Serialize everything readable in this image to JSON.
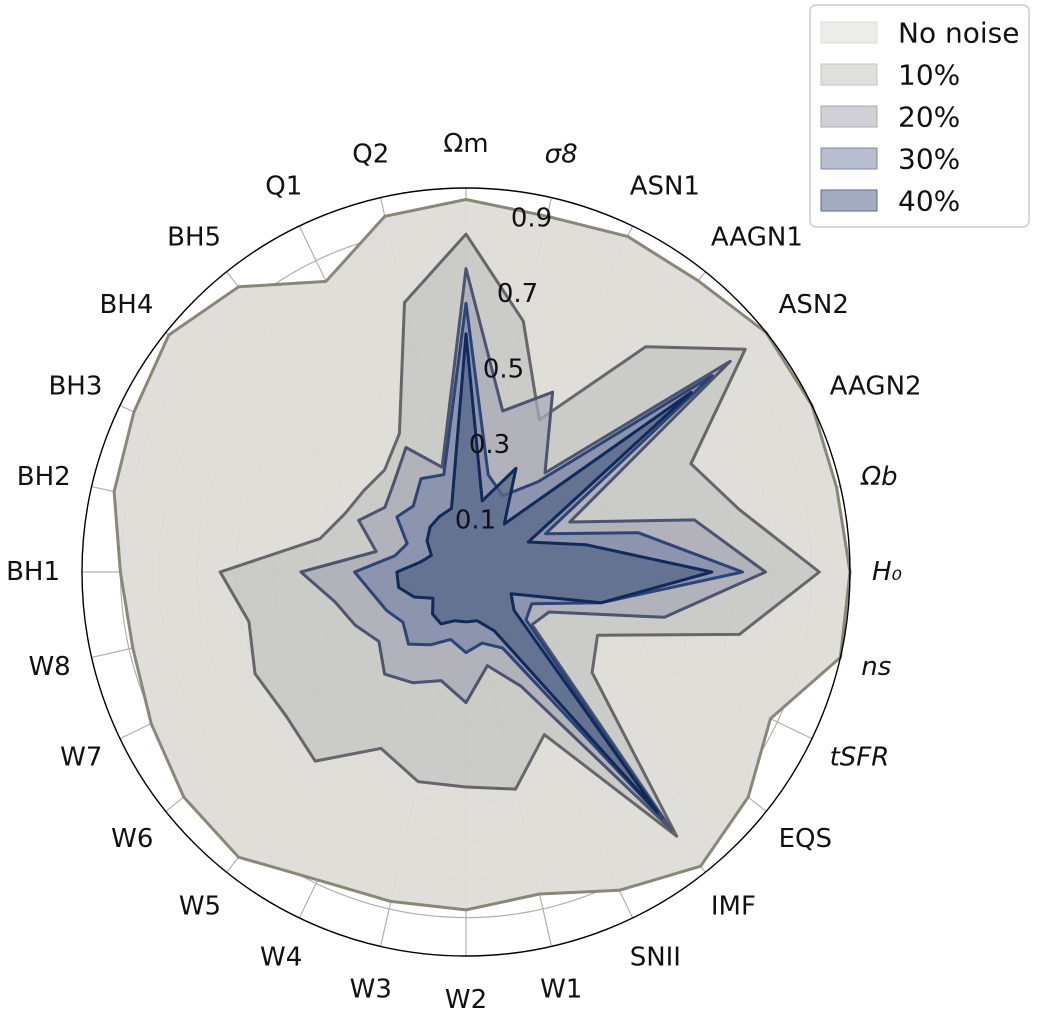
{
  "chart_data": {
    "type": "radar",
    "rlim": [
      0,
      1
    ],
    "grid": true,
    "radial_ticks": [
      {
        "value": 0.1,
        "label": "0.1"
      },
      {
        "value": 0.3,
        "label": "0.3"
      },
      {
        "value": 0.5,
        "label": "0.5"
      },
      {
        "value": 0.7,
        "label": "0.7"
      },
      {
        "value": 0.9,
        "label": "0.9"
      }
    ],
    "axes": [
      "H₀",
      "Ωb",
      "AAGN2",
      "ASN2",
      "AAGN1",
      "ASN1",
      "σ8",
      "Ωm",
      "Q2",
      "Q1",
      "BH5",
      "BH4",
      "BH3",
      "BH2",
      "BH1",
      "W8",
      "W7",
      "W6",
      "W5",
      "W4",
      "W3",
      "W2",
      "W1",
      "SNII",
      "IMF",
      "EQS",
      "tSFR",
      "ns"
    ],
    "legend_position": "top-right",
    "series": [
      {
        "name": "No noise",
        "fill": "#dedcd6",
        "stroke": "#8a8776",
        "fill_opacity": 0.95,
        "line_width": 3,
        "values": [
          1.0,
          0.99,
          1.0,
          1.0,
          0.97,
          0.97,
          0.95,
          0.97,
          0.95,
          0.84,
          0.95,
          0.99,
          0.96,
          0.94,
          0.9,
          0.89,
          0.91,
          0.94,
          0.95,
          0.89,
          0.88,
          0.88,
          0.86,
          0.92,
          0.98,
          0.94,
          0.88,
          1.0
        ]
      },
      {
        "name": "10%",
        "fill": "#c5c5c3",
        "stroke": "#66666c",
        "fill_opacity": 0.8,
        "line_width": 3,
        "values": [
          0.92,
          0.73,
          0.65,
          0.93,
          0.75,
          0.44,
          0.67,
          0.88,
          0.72,
          0.4,
          0.34,
          0.34,
          0.35,
          0.39,
          0.64,
          0.58,
          0.61,
          0.6,
          0.63,
          0.51,
          0.56,
          0.56,
          0.58,
          0.47,
          0.88,
          0.42,
          0.38,
          0.73
        ]
      },
      {
        "name": "20%",
        "fill": "#a9aab5",
        "stroke": "#4c5470",
        "fill_opacity": 0.75,
        "line_width": 3,
        "values": [
          0.78,
          0.61,
          0.3,
          0.88,
          0.33,
          0.52,
          0.43,
          0.79,
          0.28,
          0.36,
          0.3,
          0.27,
          0.31,
          0.24,
          0.43,
          0.35,
          0.32,
          0.29,
          0.34,
          0.32,
          0.29,
          0.34,
          0.25,
          0.33,
          0.86,
          0.22,
          0.24,
          0.53
        ]
      },
      {
        "name": "30%",
        "fill": "#7d88a8",
        "stroke": "#2d4478",
        "fill_opacity": 0.7,
        "line_width": 3,
        "values": [
          0.72,
          0.46,
          0.23,
          0.82,
          0.3,
          0.22,
          0.26,
          0.7,
          0.26,
          0.27,
          0.22,
          0.23,
          0.17,
          0.19,
          0.29,
          0.25,
          0.23,
          0.21,
          0.24,
          0.21,
          0.18,
          0.21,
          0.19,
          0.22,
          0.82,
          0.2,
          0.19,
          0.36
        ]
      },
      {
        "name": "40%",
        "fill": "#5a6a8a",
        "stroke": "#102a5a",
        "fill_opacity": 0.8,
        "line_width": 3,
        "values": [
          0.64,
          0.32,
          0.18,
          0.75,
          0.16,
          0.3,
          0.19,
          0.62,
          0.17,
          0.16,
          0.15,
          0.13,
          0.1,
          0.12,
          0.18,
          0.18,
          0.15,
          0.11,
          0.14,
          0.15,
          0.13,
          0.13,
          0.13,
          0.17,
          0.8,
          0.16,
          0.13,
          0.36
        ]
      }
    ]
  }
}
